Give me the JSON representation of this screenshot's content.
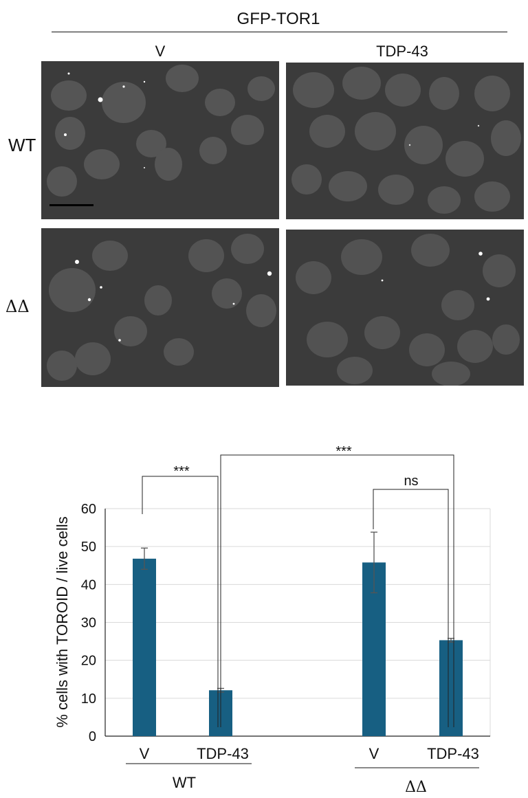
{
  "figure": {
    "title": "GFP-TOR1",
    "columns": [
      "V",
      "TDP-43"
    ],
    "rows": [
      "WT",
      "ΔΔ"
    ]
  },
  "chart_data": {
    "type": "bar",
    "ylabel": "% cells with TOROID / live cells",
    "ylim": [
      0,
      60
    ],
    "yticks": [
      0,
      10,
      20,
      30,
      40,
      50,
      60
    ],
    "grid": true,
    "bar_color": "#175f82",
    "categories": [
      "V",
      "TDP-43",
      "V",
      "TDP-43"
    ],
    "groups": [
      {
        "label": "WT",
        "categories": [
          "V",
          "TDP-43"
        ]
      },
      {
        "label": "ΔΔ",
        "categories": [
          "V",
          "TDP-43"
        ]
      }
    ],
    "values": [
      46.8,
      12.1,
      45.8,
      25.3
    ],
    "errors": [
      2.8,
      0.5,
      8.0,
      0.5
    ],
    "annotations": [
      "***",
      "***",
      "ns"
    ]
  },
  "colors": {
    "accent": "#175f82",
    "panel_bg": "#3b3b3b"
  }
}
